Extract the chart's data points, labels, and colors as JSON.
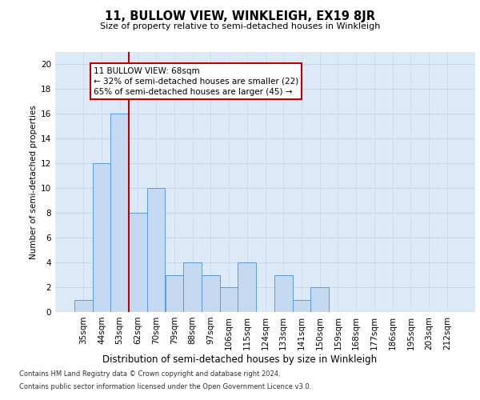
{
  "title": "11, BULLOW VIEW, WINKLEIGH, EX19 8JR",
  "subtitle": "Size of property relative to semi-detached houses in Winkleigh",
  "xlabel": "Distribution of semi-detached houses by size in Winkleigh",
  "ylabel": "Number of semi-detached properties",
  "categories": [
    "35sqm",
    "44sqm",
    "53sqm",
    "62sqm",
    "70sqm",
    "79sqm",
    "88sqm",
    "97sqm",
    "106sqm",
    "115sqm",
    "124sqm",
    "133sqm",
    "141sqm",
    "150sqm",
    "159sqm",
    "168sqm",
    "177sqm",
    "186sqm",
    "195sqm",
    "203sqm",
    "212sqm"
  ],
  "values": [
    1,
    12,
    16,
    8,
    10,
    3,
    4,
    3,
    2,
    4,
    0,
    3,
    1,
    2,
    0,
    0,
    0,
    0,
    0,
    0,
    0
  ],
  "bar_color": "#C5D9F0",
  "bar_edge_color": "#5B9BD5",
  "vline_color": "#C00000",
  "vline_x": 2.5,
  "annotation_text": "11 BULLOW VIEW: 68sqm\n← 32% of semi-detached houses are smaller (22)\n65% of semi-detached houses are larger (45) →",
  "annotation_box_facecolor": "#FFFFFF",
  "annotation_box_edgecolor": "#C00000",
  "ylim": [
    0,
    21
  ],
  "yticks": [
    0,
    2,
    4,
    6,
    8,
    10,
    12,
    14,
    16,
    18,
    20
  ],
  "grid_color": "#C8D8EC",
  "background_color": "#DCE9F7",
  "footer_line1": "Contains HM Land Registry data © Crown copyright and database right 2024.",
  "footer_line2": "Contains public sector information licensed under the Open Government Licence v3.0."
}
